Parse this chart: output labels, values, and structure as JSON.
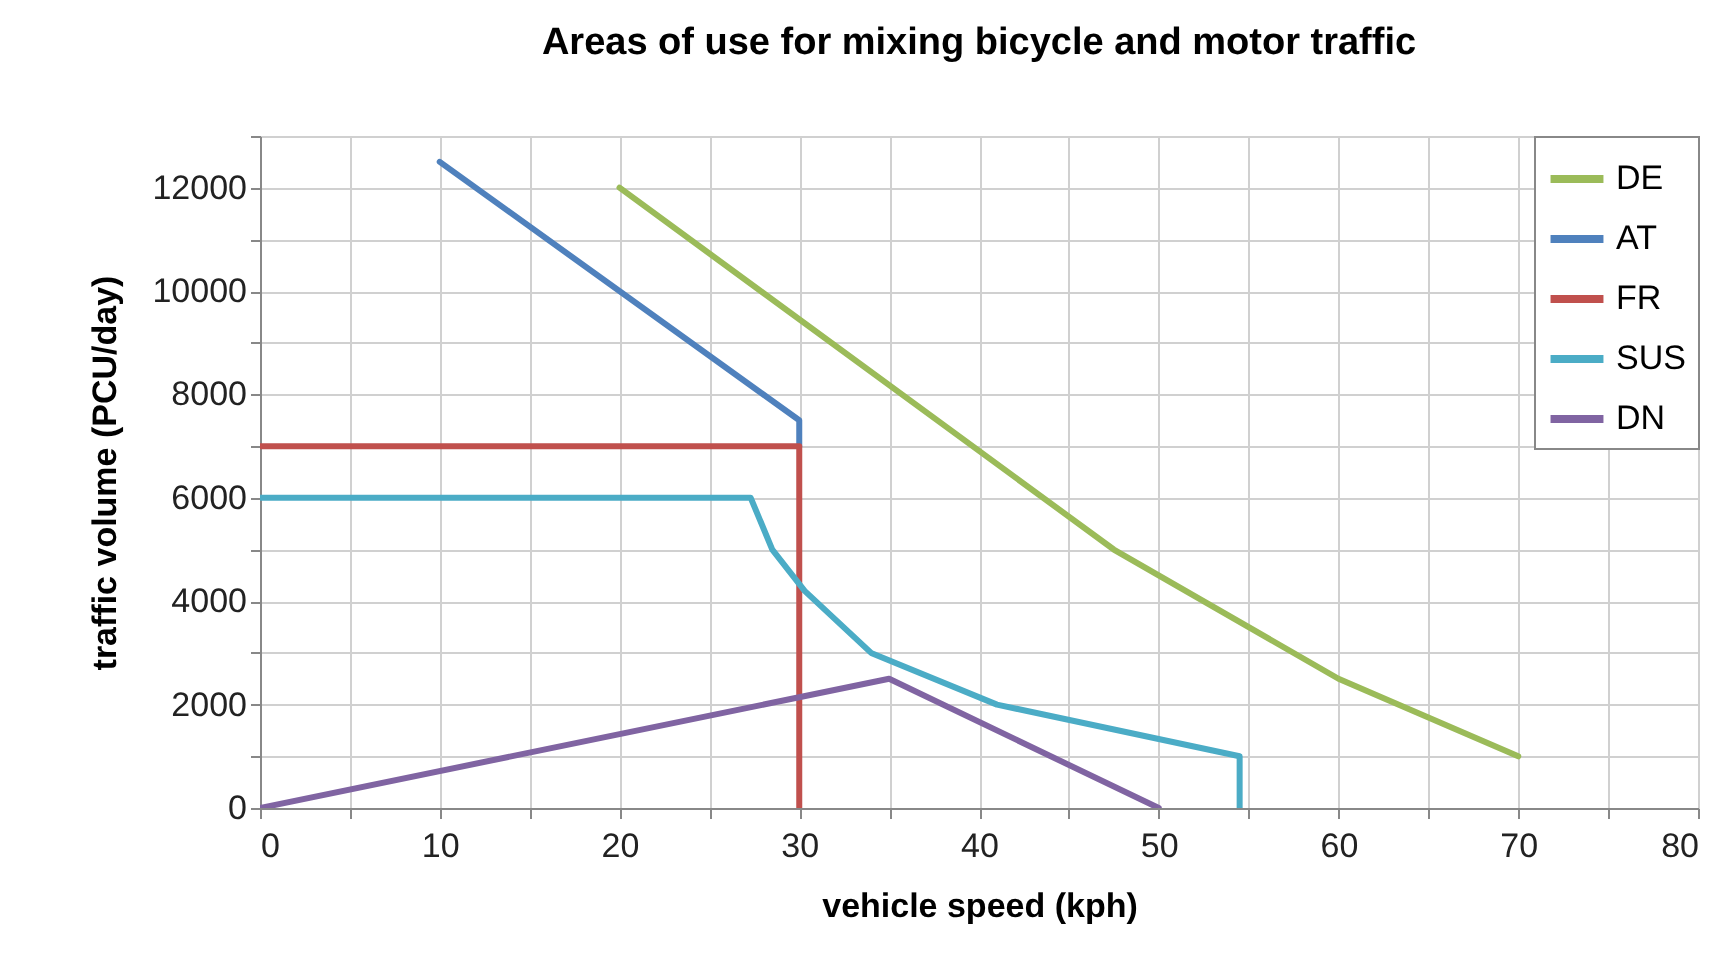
{
  "chart_data": {
    "type": "line",
    "title": "Areas of use for mixing bicycle and motor traffic",
    "xlabel": "vehicle speed (kph)",
    "ylabel": "traffic volume (PCU/day)",
    "series": [
      {
        "name": "DE",
        "color": "#9bbb59",
        "x": [
          20,
          47.5,
          60,
          70
        ],
        "values": [
          12000,
          5000,
          2500,
          1000
        ]
      },
      {
        "name": "AT",
        "color": "#4f81bd",
        "x": [
          10,
          30,
          30
        ],
        "values": [
          12500,
          7500,
          7000
        ]
      },
      {
        "name": "FR",
        "color": "#c0504d",
        "x": [
          0,
          30,
          30
        ],
        "values": [
          7000,
          7000,
          0
        ]
      },
      {
        "name": "SUS",
        "color": "#4bacc6",
        "x": [
          0,
          27.3,
          28.5,
          30.3,
          34,
          41,
          54.5,
          54.5
        ],
        "values": [
          6000,
          6000,
          5000,
          4200,
          3000,
          2000,
          1000,
          0
        ]
      },
      {
        "name": "DN",
        "color": "#8064a2",
        "x": [
          0,
          35,
          50
        ],
        "values": [
          0,
          2500,
          0
        ]
      }
    ],
    "xlim": [
      0,
      80
    ],
    "xticks": [
      0,
      {
        "value": 5,
        "label": null
      },
      10,
      {
        "value": 15,
        "label": null
      },
      20,
      {
        "value": 25,
        "label": null
      },
      30,
      {
        "value": 35,
        "label": null
      },
      40,
      {
        "value": 45,
        "label": null
      },
      50,
      {
        "value": 55,
        "label": null
      },
      60,
      {
        "value": 65,
        "label": null
      },
      70,
      {
        "value": 75,
        "label": null
      },
      80
    ],
    "ylim": [
      0,
      13000
    ],
    "yticks": [
      0,
      {
        "value": 1000,
        "label": null
      },
      2000,
      {
        "value": 3000,
        "label": null
      },
      4000,
      {
        "value": 5000,
        "label": null
      },
      6000,
      {
        "value": 7000,
        "label": null
      },
      8000,
      {
        "value": 9000,
        "label": null
      },
      10000,
      {
        "value": 11000,
        "label": null
      },
      12000,
      {
        "value": 13000,
        "label": null
      }
    ],
    "grid": true,
    "legend": "top right",
    "marker": "none",
    "line_style": "solid"
  }
}
